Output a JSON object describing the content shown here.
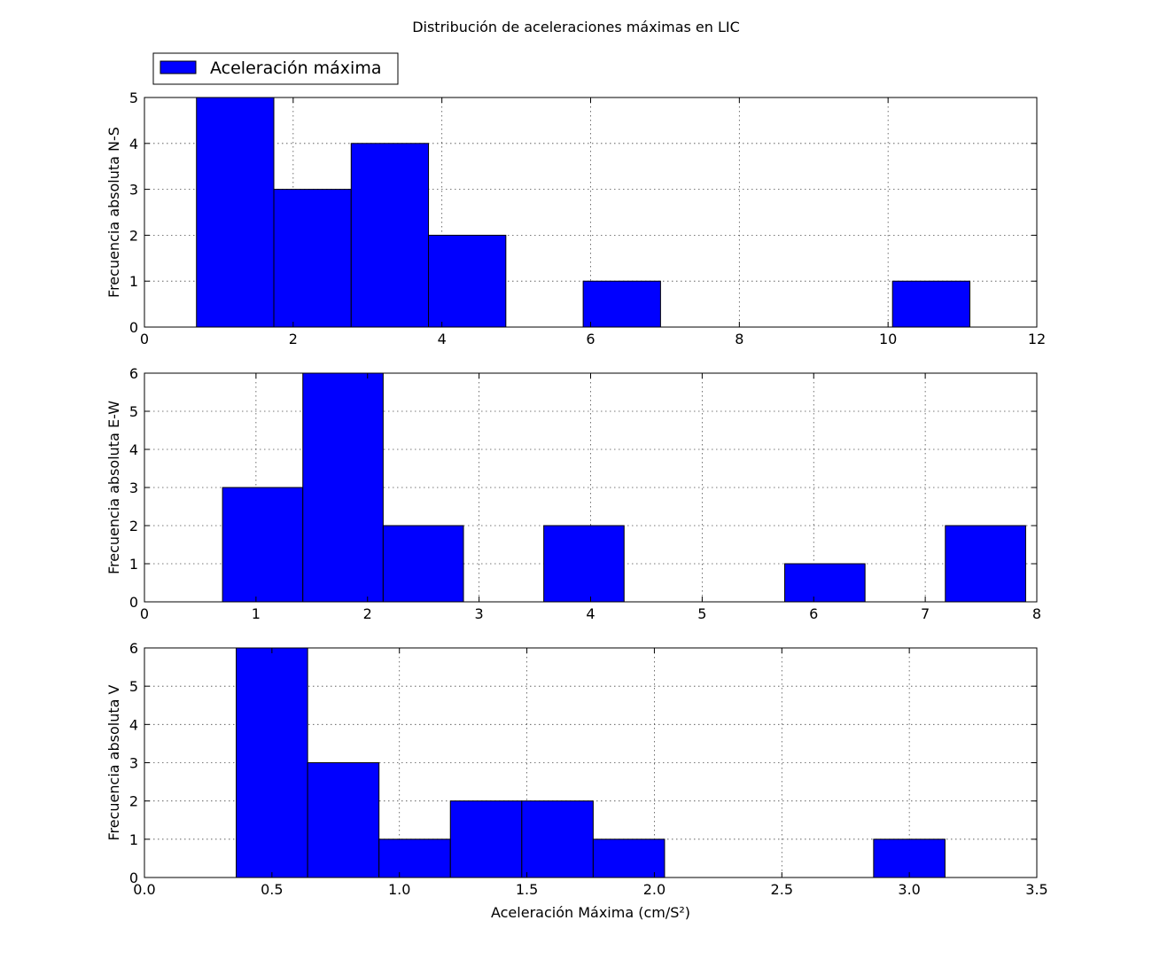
{
  "figure": {
    "title": "Distribución de aceleraciones máximas en LIC",
    "legend_label": "Aceleración máxima",
    "legend_position": "top-left",
    "bar_color": "#0000ff",
    "edge_color": "#000000"
  },
  "chart_data": [
    {
      "type": "bar",
      "subtype": "histogram",
      "ylabel": "Frecuencia absoluta N-S",
      "xlabel": "",
      "xlim": [
        0,
        12
      ],
      "ylim": [
        0,
        5
      ],
      "xticks": [
        "0",
        "2",
        "4",
        "6",
        "8",
        "10",
        "12"
      ],
      "yticks": [
        "0",
        "1",
        "2",
        "3",
        "4",
        "5"
      ],
      "grid": true,
      "bins": [
        [
          0.7,
          1.74
        ],
        [
          1.74,
          2.78
        ],
        [
          2.78,
          3.82
        ],
        [
          3.82,
          4.86
        ],
        [
          5.9,
          6.94
        ],
        [
          10.06,
          11.1
        ]
      ],
      "values": [
        5,
        3,
        4,
        2,
        1,
        1
      ]
    },
    {
      "type": "bar",
      "subtype": "histogram",
      "ylabel": "Frecuencia absoluta E-W",
      "xlabel": "",
      "xlim": [
        0,
        8
      ],
      "ylim": [
        0,
        6
      ],
      "xticks": [
        "0",
        "1",
        "2",
        "3",
        "4",
        "5",
        "6",
        "7",
        "8"
      ],
      "yticks": [
        "0",
        "1",
        "2",
        "3",
        "4",
        "5",
        "6"
      ],
      "grid": true,
      "bins": [
        [
          0.7,
          1.42
        ],
        [
          1.42,
          2.14
        ],
        [
          2.14,
          2.86
        ],
        [
          3.58,
          4.3
        ],
        [
          5.74,
          6.46
        ],
        [
          7.18,
          7.9
        ]
      ],
      "values": [
        3,
        6,
        2,
        2,
        1,
        2
      ]
    },
    {
      "type": "bar",
      "subtype": "histogram",
      "ylabel": "Frecuencia absoluta V",
      "xlabel": "Aceleración Máxima (cm/S²)",
      "xlim": [
        0,
        3.5
      ],
      "ylim": [
        0,
        6
      ],
      "xticks": [
        "0.0",
        "0.5",
        "1.0",
        "1.5",
        "2.0",
        "2.5",
        "3.0",
        "3.5"
      ],
      "yticks": [
        "0",
        "1",
        "2",
        "3",
        "4",
        "5",
        "6"
      ],
      "grid": true,
      "bins": [
        [
          0.36,
          0.64
        ],
        [
          0.64,
          0.92
        ],
        [
          0.92,
          1.2
        ],
        [
          1.2,
          1.48
        ],
        [
          1.48,
          1.76
        ],
        [
          1.76,
          2.04
        ],
        [
          2.86,
          3.14
        ]
      ],
      "values": [
        6,
        3,
        1,
        2,
        2,
        1,
        1
      ]
    }
  ]
}
